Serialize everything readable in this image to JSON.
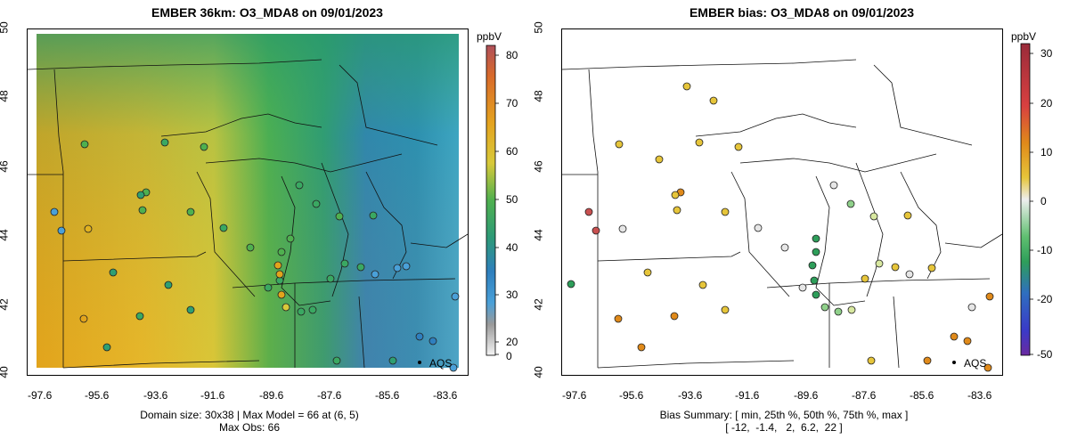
{
  "left": {
    "title": "EMBER 36km: O3_MDA8 on 09/01/2023",
    "colorbar_unit": "ppbV",
    "colorbar_ticks": [
      "80",
      "70",
      "60",
      "50",
      "40",
      "30",
      "20",
      "0"
    ],
    "x_ticks": [
      "-97.6",
      "-95.6",
      "-93.6",
      "-91.6",
      "-89.6",
      "-87.6",
      "-85.6",
      "-83.6"
    ],
    "y_ticks": [
      "50",
      "48",
      "46",
      "44",
      "42",
      "40"
    ],
    "legend_label": "AQS",
    "footer_line1": "Domain size: 30x38 | Max Model = 66 at (6, 5)",
    "footer_line2": "Max Obs: 66"
  },
  "right": {
    "title": "EMBER bias: O3_MDA8 on 09/01/2023",
    "colorbar_unit": "ppbV",
    "colorbar_ticks": [
      "30",
      "20",
      "10",
      "0",
      "-10",
      "-20",
      "-50"
    ],
    "x_ticks": [
      "-97.6",
      "-95.6",
      "-93.6",
      "-91.6",
      "-89.6",
      "-87.6",
      "-85.6",
      "-83.6"
    ],
    "y_ticks": [
      "50",
      "48",
      "46",
      "44",
      "42",
      "40"
    ],
    "legend_label": "AQS",
    "footer_line1": "Bias Summary: [ min, 25th %, 50th %, 75th %, max ]",
    "footer_line2": "[ -12,  -1.4,   2,  6.2,  22 ]"
  },
  "colors": {
    "model_high": "#e0a21a",
    "model_mid": "#57b84a",
    "model_low": "#2f7fbf",
    "bias_pos": "#e08a1a",
    "bias_zero": "#e6e6e6",
    "bias_neg": "#2e9e5a"
  }
}
